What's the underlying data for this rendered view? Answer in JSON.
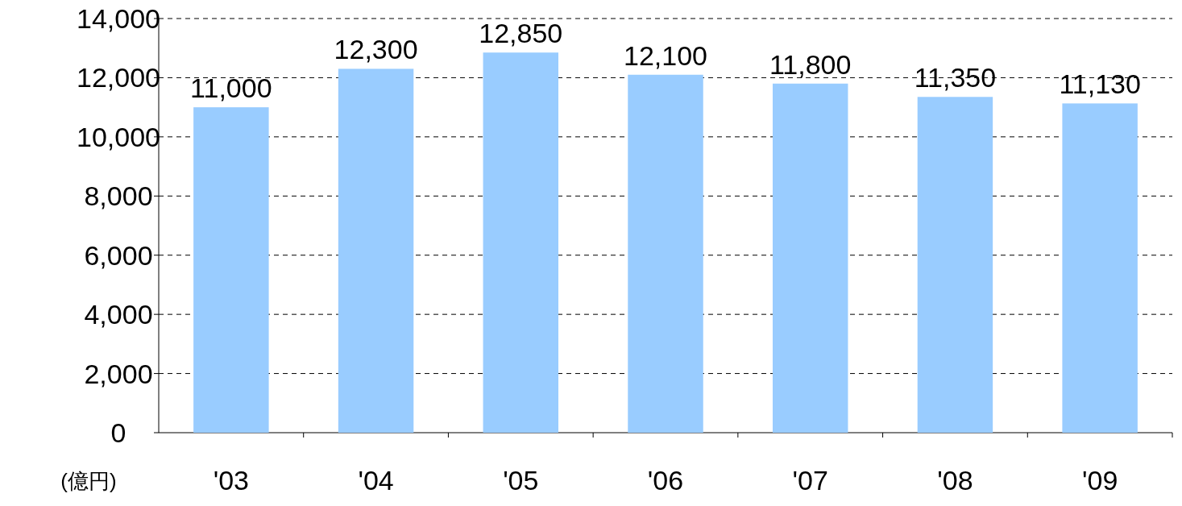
{
  "chart_data": {
    "type": "bar",
    "ylabel": "(億円)",
    "categories": [
      "'03",
      "'04",
      "'05",
      "'06",
      "'07",
      "'08",
      "'09"
    ],
    "values": [
      11000,
      12300,
      12850,
      12100,
      11800,
      11350,
      11130
    ],
    "value_labels": [
      "11,000",
      "12,300",
      "12,850",
      "12,100",
      "11,800",
      "11,350",
      "11,130"
    ],
    "color": "#99ccff",
    "ylim": [
      0,
      14000
    ],
    "yticks": [
      0,
      {
        "value": 2000,
        "label": "2,000"
      },
      {
        "value": 4000,
        "label": "4,000"
      },
      {
        "value": 6000,
        "label": "6,000"
      },
      {
        "value": 8000,
        "label": "8,000"
      },
      {
        "value": 10000,
        "label": "10,000"
      },
      {
        "value": 12000,
        "label": "12,000"
      },
      {
        "value": 14000,
        "label": "14,000"
      }
    ],
    "grid": "y"
  }
}
